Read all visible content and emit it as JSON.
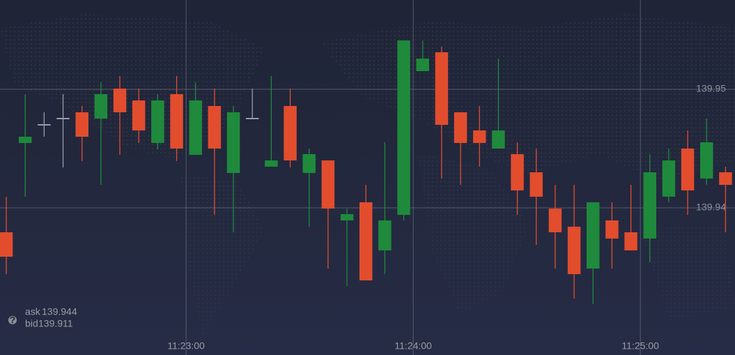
{
  "chart_data": {
    "type": "candlestick",
    "x": [
      12.5,
      17.5,
      22.5,
      27.5,
      32.5,
      37.5,
      42.5,
      47.5,
      52.5,
      57.5,
      62.5,
      67.5,
      72.5,
      77.5,
      82.5,
      87.5,
      92.5,
      97.5,
      102.5,
      107.5,
      112.5,
      117.5,
      122.5,
      127.5,
      132.5,
      137.5,
      142.5,
      147.5,
      152.5,
      157.5,
      162.5,
      167.5,
      172.5,
      177.5,
      182.5,
      187.5,
      192.5,
      197.5,
      202.5
    ],
    "open": [
      139.93794,
      139.94547,
      139.947,
      139.94753,
      139.94806,
      139.94753,
      139.95006,
      139.94906,
      139.94547,
      139.94959,
      139.94447,
      139.94859,
      139.94294,
      139.94753,
      139.94347,
      139.94859,
      139.94294,
      139.944,
      139.93894,
      139.94047,
      139.93641,
      139.93941,
      139.95153,
      139.95312,
      139.94806,
      139.94653,
      139.945,
      139.94453,
      139.943,
      139.93994,
      139.93841,
      139.93488,
      139.93894,
      139.93794,
      139.93741,
      139.94094,
      139.945,
      139.94247,
      139.943
    ],
    "high": [
      139.94094,
      139.94959,
      139.94806,
      139.94959,
      139.94859,
      139.95059,
      139.95112,
      139.95006,
      139.94959,
      139.95112,
      139.95059,
      139.95006,
      139.94859,
      139.95006,
      139.95112,
      139.95006,
      139.945,
      139.944,
      139.93994,
      139.94194,
      139.94553,
      139.95412,
      139.95412,
      139.95359,
      139.94806,
      139.94859,
      139.95259,
      139.94553,
      139.945,
      139.94194,
      139.94194,
      139.94047,
      139.94047,
      139.94194,
      139.94453,
      139.945,
      139.94653,
      139.94753,
      139.94347
    ],
    "low": [
      139.93441,
      139.94094,
      139.946,
      139.94341,
      139.94394,
      139.94194,
      139.94447,
      139.94547,
      139.94494,
      139.94394,
      139.94447,
      139.93941,
      139.93794,
      139.94753,
      139.94347,
      139.94341,
      139.93841,
      139.93488,
      139.93341,
      139.93388,
      139.93441,
      139.93894,
      139.95153,
      139.94247,
      139.94194,
      139.94347,
      139.945,
      139.93941,
      139.93688,
      139.93488,
      139.93235,
      139.93188,
      139.93488,
      139.93641,
      139.93541,
      139.94047,
      139.93941,
      139.94194,
      139.93794
    ],
    "close": [
      139.93588,
      139.946,
      139.947,
      139.94753,
      139.946,
      139.94959,
      139.94806,
      139.94653,
      139.94906,
      139.945,
      139.94906,
      139.945,
      139.94806,
      139.94753,
      139.944,
      139.944,
      139.94453,
      139.93994,
      139.93947,
      139.93388,
      139.93894,
      139.95412,
      139.95259,
      139.947,
      139.94547,
      139.94547,
      139.94653,
      139.94147,
      139.94094,
      139.93794,
      139.93441,
      139.94047,
      139.93741,
      139.93641,
      139.943,
      139.944,
      139.94147,
      139.94553,
      139.94194
    ],
    "up_color": "#1f8a3b",
    "down_color": "#e24d2e",
    "flat_color": "#9a9ca6",
    "xlim": [
      10.84,
      205.0
    ],
    "xticks": [
      {
        "value": 60,
        "label": "11:23:00"
      },
      {
        "value": 120,
        "label": "11:24:00"
      },
      {
        "value": 180,
        "label": "11:25:00"
      }
    ],
    "ylim": [
      139.92759,
      139.95753
    ],
    "yticks": [
      139.94,
      139.95
    ],
    "grid": true
  },
  "quote": {
    "ask_label": "ask",
    "ask": 139.944,
    "bid_label": "bid",
    "bid": 139.911
  }
}
